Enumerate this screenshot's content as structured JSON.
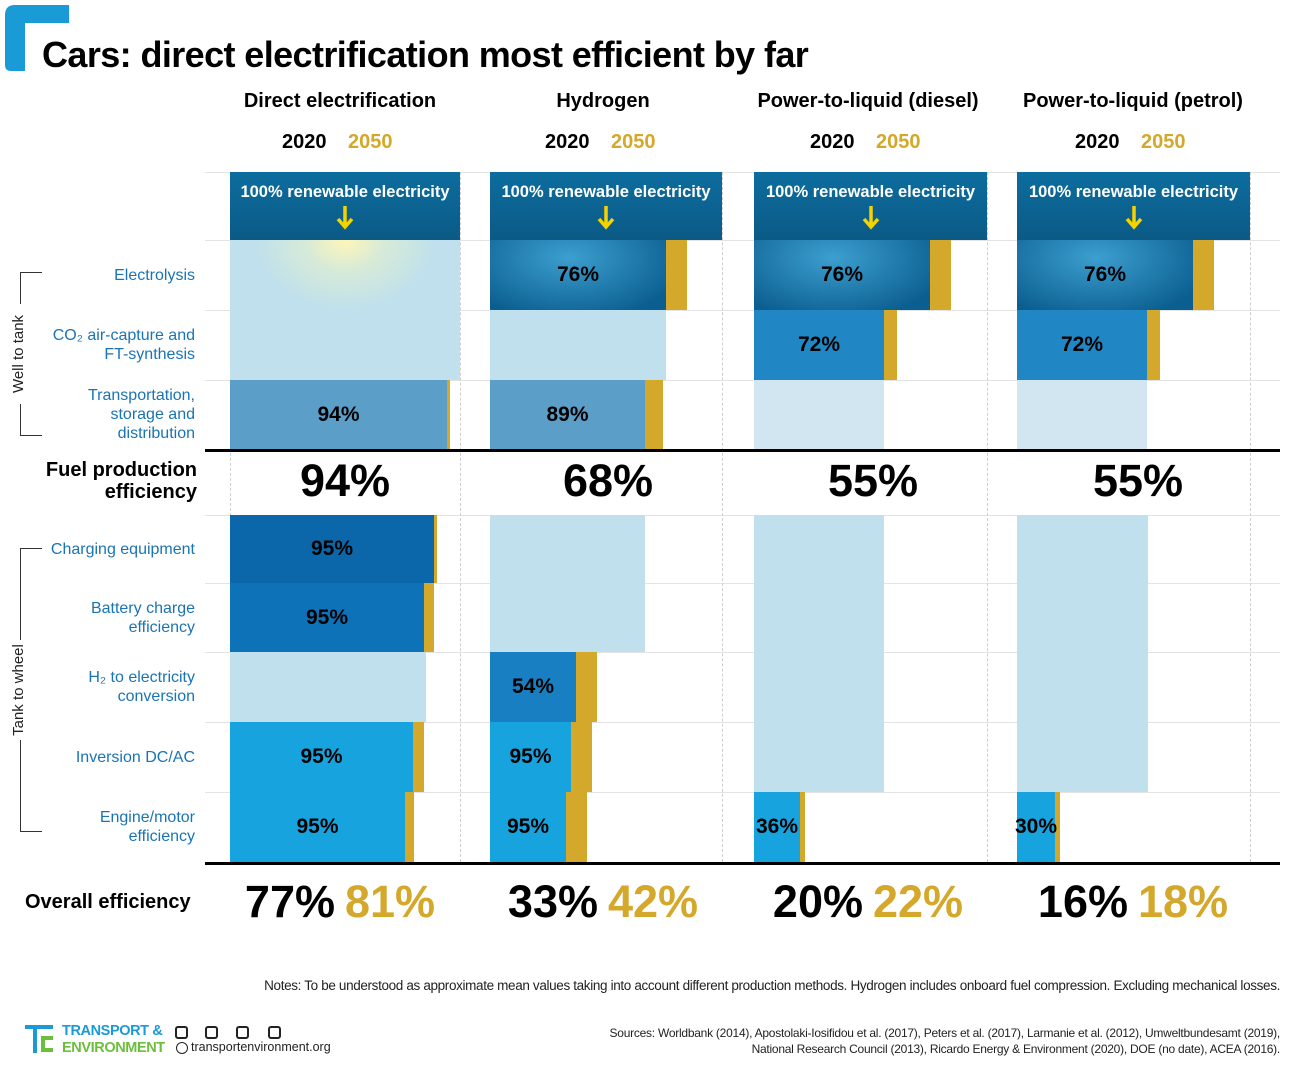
{
  "title": "Cars: direct electrification most efficient by far",
  "years": [
    "2020",
    "2050"
  ],
  "source_label": "100% renewable electricity",
  "stage_labels": {
    "well_to_tank": "Well to tank",
    "tank_to_wheel": "Tank to wheel"
  },
  "rows": [
    "Electrolysis",
    "CO₂ air-capture and FT-synthesis",
    "Transportation, storage and distribution",
    "Charging equipment",
    "Battery charge efficiency",
    "H₂ to electricity conversion",
    "Inversion DC/AC",
    "Engine/motor efficiency"
  ],
  "fuel_production_label": "Fuel production efficiency",
  "overall_label": "Overall efficiency",
  "columns": [
    {
      "name": "Direct electrification",
      "steps": [
        null,
        null,
        "94%",
        "95%",
        "95%",
        null,
        "95%",
        "95%"
      ],
      "fuel_production": "94%",
      "overall_2020": "77%",
      "overall_2050": "81%"
    },
    {
      "name": "Hydrogen",
      "steps": [
        "76%",
        null,
        "89%",
        null,
        null,
        "54%",
        "95%",
        "95%"
      ],
      "fuel_production": "68%",
      "overall_2020": "33%",
      "overall_2050": "42%"
    },
    {
      "name": "Power-to-liquid (diesel)",
      "steps": [
        "76%",
        "72%",
        null,
        null,
        null,
        null,
        null,
        "36%"
      ],
      "fuel_production": "55%",
      "overall_2020": "20%",
      "overall_2050": "22%"
    },
    {
      "name": "Power-to-liquid (petrol)",
      "steps": [
        "76%",
        "72%",
        null,
        null,
        null,
        null,
        null,
        "30%"
      ],
      "fuel_production": "55%",
      "overall_2020": "16%",
      "overall_2050": "18%"
    }
  ],
  "notes": "Notes: To be understood as approximate mean values taking into account different production methods. Hydrogen includes onboard fuel compression. Excluding mechanical losses.",
  "sources": [
    "Sources: Worldbank (2014), Apostolaki-Iosifidou et al. (2017), Peters et al. (2017), Larmanie et al. (2012), Umweltbundesamt (2019),",
    "National Research Council (2013), Ricardo Energy & Environment (2020), DOE (no date), ACEA (2016)."
  ],
  "logo": [
    "TRANSPORT &",
    "ENVIRONMENT"
  ],
  "website": "transportenvironment.org"
}
